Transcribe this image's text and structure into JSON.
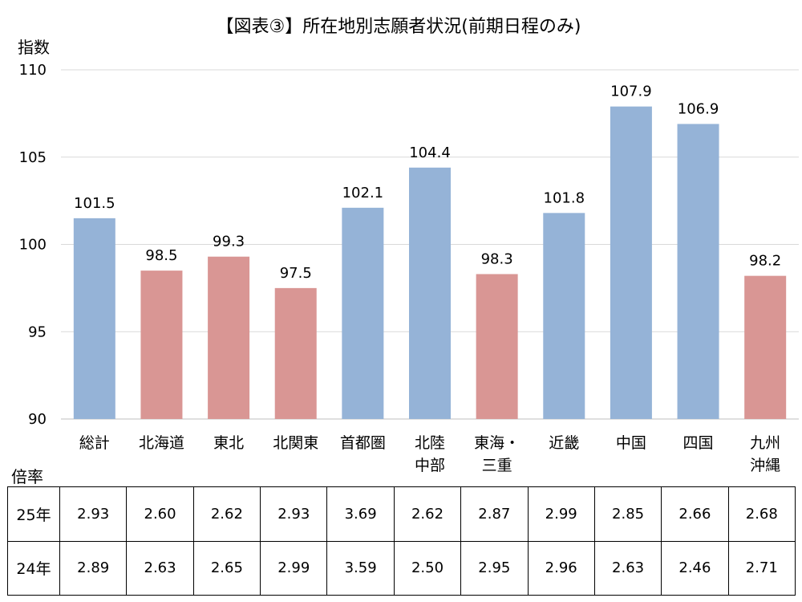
{
  "chart_data": {
    "type": "bar",
    "title": "【図表③】所在地別志願者状況(前期日程のみ)",
    "ylabel": "指数",
    "xlabel": "",
    "ylim": [
      90,
      110
    ],
    "yticks": [
      90,
      95,
      100,
      105,
      110
    ],
    "grid": true,
    "legend": "none",
    "colors": {
      "above_100": "#95B3D7",
      "below_100": "#D99694"
    },
    "categories": [
      [
        "総計"
      ],
      [
        "北海道"
      ],
      [
        "東北"
      ],
      [
        "北関東"
      ],
      [
        "首都圏"
      ],
      [
        "北陸",
        "中部"
      ],
      [
        "東海・",
        "三重"
      ],
      [
        "近畿"
      ],
      [
        "中国"
      ],
      [
        "四国"
      ],
      [
        "九州",
        "沖縄"
      ]
    ],
    "values": [
      101.5,
      98.5,
      99.3,
      97.5,
      102.1,
      104.4,
      98.3,
      101.8,
      107.9,
      106.9,
      98.2
    ],
    "data_labels": [
      "101.5",
      "98.5",
      "99.3",
      "97.5",
      "102.1",
      "104.4",
      "98.3",
      "101.8",
      "107.9",
      "106.9",
      "98.2"
    ]
  },
  "ratio_table": {
    "caption": "倍率",
    "rows": [
      {
        "label": "25年",
        "values": [
          "2.93",
          "2.60",
          "2.62",
          "2.93",
          "3.69",
          "2.62",
          "2.87",
          "2.99",
          "2.85",
          "2.66",
          "2.68"
        ]
      },
      {
        "label": "24年",
        "values": [
          "2.89",
          "2.63",
          "2.65",
          "2.99",
          "3.59",
          "2.50",
          "2.95",
          "2.96",
          "2.63",
          "2.46",
          "2.71"
        ]
      }
    ]
  }
}
